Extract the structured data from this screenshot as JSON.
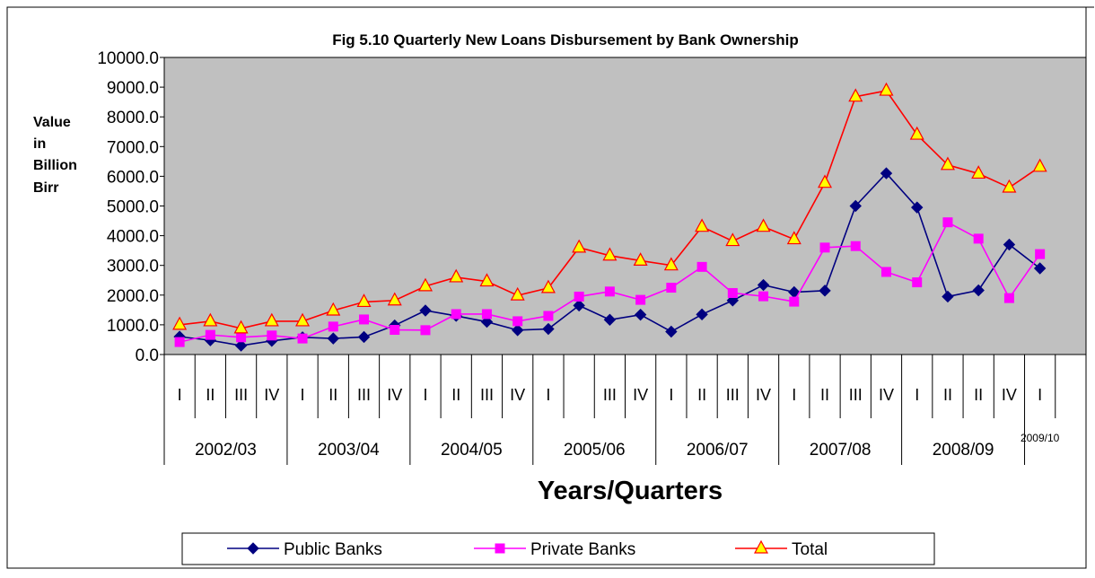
{
  "chart_data": {
    "type": "line",
    "title": "Fig 5.10 Quarterly New Loans Disbursement by Bank Ownership",
    "xlabel": "Years/Quarters",
    "ylabel": "Value in Billion Birr",
    "ylabel_lines": [
      "Value",
      "in",
      "Billion",
      "Birr"
    ],
    "ylim": [
      0,
      10000
    ],
    "y_ticks": [
      "0.0",
      "1000.0",
      "2000.0",
      "3000.0",
      "4000.0",
      "5000.0",
      "6000.0",
      "7000.0",
      "8000.0",
      "9000.0",
      "10000.0"
    ],
    "grid": false,
    "plot_background": "#c0c0c0",
    "legend_position": "bottom",
    "quarter_labels": [
      "I",
      "II",
      "III",
      "IV",
      "I",
      "II",
      "III",
      "IV",
      "I",
      "II",
      "III",
      "IV",
      "I",
      "",
      "III",
      "IV",
      "I",
      "II",
      "III",
      "IV",
      "I",
      "II",
      "III",
      "IV",
      "I",
      "II",
      "II",
      "IV",
      "I",
      ""
    ],
    "year_labels": [
      "2002/03",
      "2003/04",
      "2004/05",
      "2005/06",
      "2006/07",
      "2007/08",
      "2008/09",
      "2009/10"
    ],
    "series": [
      {
        "name": "Public Banks",
        "color": "#000080",
        "marker": "diamond",
        "values": [
          600,
          480,
          300,
          460,
          580,
          540,
          590,
          980,
          1480,
          1300,
          1100,
          820,
          860,
          1650,
          1170,
          1340,
          770,
          1350,
          1820,
          2340,
          2100,
          2150,
          5000,
          6100,
          4950,
          1950,
          2160,
          3700,
          2900
        ]
      },
      {
        "name": "Private Banks",
        "color": "#ff00ff",
        "marker": "square",
        "values": [
          420,
          660,
          580,
          640,
          540,
          940,
          1180,
          830,
          820,
          1360,
          1360,
          1120,
          1300,
          1950,
          2120,
          1840,
          2250,
          2950,
          2070,
          1960,
          1780,
          3600,
          3650,
          2780,
          2430,
          4450,
          3900,
          1900,
          3380
        ]
      },
      {
        "name": "Total",
        "color": "#ff0000",
        "marker": "triangle",
        "marker_fill": "#ffff00",
        "values": [
          1000,
          1120,
          880,
          1120,
          1120,
          1480,
          1770,
          1820,
          2300,
          2600,
          2460,
          1990,
          2240,
          3600,
          3330,
          3160,
          3000,
          4300,
          3820,
          4300,
          3880,
          5780,
          8680,
          8880,
          7400,
          6380,
          6090,
          5620,
          6320
        ]
      }
    ]
  }
}
